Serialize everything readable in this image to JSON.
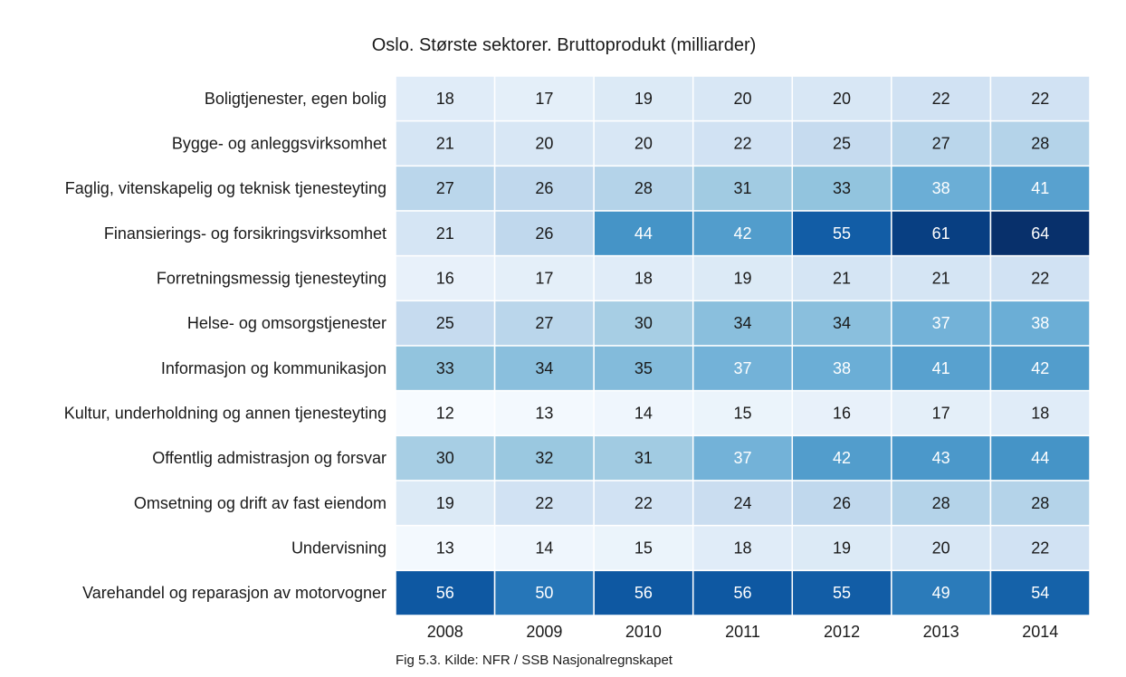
{
  "chart_data": {
    "type": "heatmap",
    "title": "Oslo. Største sektorer. Bruttoprodukt (milliarder)",
    "caption": "Fig 5.3. Kilde: NFR / SSB Nasjonalregnskapet",
    "xlabel": "",
    "ylabel": "",
    "colormap": "Blues",
    "value_range": [
      12,
      64
    ],
    "x": [
      "2008",
      "2009",
      "2010",
      "2011",
      "2012",
      "2013",
      "2014"
    ],
    "y": [
      "Boligtjenester, egen bolig",
      "Bygge- og anleggsvirksomhet",
      "Faglig, vitenskapelig og teknisk tjenesteyting",
      "Finansierings- og forsikringsvirksomhet",
      "Forretningsmessig tjenesteyting",
      "Helse- og omsorgstjenester",
      "Informasjon og kommunikasjon",
      "Kultur, underholdning og annen tjenesteyting",
      "Offentlig admistrasjon og forsvar",
      "Omsetning og drift av fast eiendom",
      "Undervisning",
      "Varehandel og reparasjon av motorvogner"
    ],
    "values": [
      [
        18,
        17,
        19,
        20,
        20,
        22,
        22
      ],
      [
        21,
        20,
        20,
        22,
        25,
        27,
        28
      ],
      [
        27,
        26,
        28,
        31,
        33,
        38,
        41
      ],
      [
        21,
        26,
        44,
        42,
        55,
        61,
        64
      ],
      [
        16,
        17,
        18,
        19,
        21,
        21,
        22
      ],
      [
        25,
        27,
        30,
        34,
        34,
        37,
        38
      ],
      [
        33,
        34,
        35,
        37,
        38,
        41,
        42
      ],
      [
        12,
        13,
        14,
        15,
        16,
        17,
        18
      ],
      [
        30,
        32,
        31,
        37,
        42,
        43,
        44
      ],
      [
        19,
        22,
        22,
        24,
        26,
        28,
        28
      ],
      [
        13,
        14,
        15,
        18,
        19,
        20,
        22
      ],
      [
        56,
        50,
        56,
        56,
        55,
        49,
        54
      ]
    ]
  }
}
